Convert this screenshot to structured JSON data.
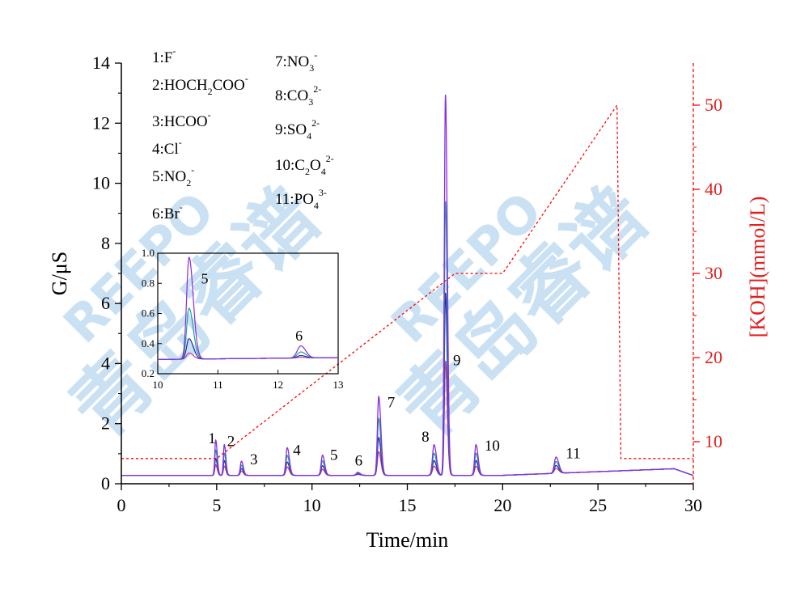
{
  "chart_data": {
    "type": "line",
    "xlabel": "Time/min",
    "ylabel": "G/μS",
    "y2label": "[KOH](mmol/L)",
    "xlim": [
      0,
      30
    ],
    "ylim": [
      0,
      14
    ],
    "y2lim": [
      5,
      55
    ],
    "xticks": [
      "0",
      "5",
      "10",
      "15",
      "20",
      "25",
      "30"
    ],
    "yticks": [
      "0",
      "2",
      "4",
      "6",
      "8",
      "10",
      "12",
      "14"
    ],
    "y2ticks": [
      "10",
      "20",
      "30",
      "40",
      "50"
    ],
    "legend": [
      {
        "num": "1:",
        "base": "F",
        "sub": "",
        "sup": "-"
      },
      {
        "num": "2:",
        "base": "HOCH",
        "sub": "2",
        "base2": "COO",
        "sup": "-"
      },
      {
        "num": "3:",
        "base": "HCOO",
        "sub": "",
        "sup": "-"
      },
      {
        "num": "4:",
        "base": "Cl",
        "sub": "",
        "sup": "-"
      },
      {
        "num": "5:",
        "base": "NO",
        "sub": "2",
        "sup": "-"
      },
      {
        "num": "6:",
        "base": "Br",
        "sub": "",
        "sup": "-"
      },
      {
        "num": "7:",
        "base": "NO",
        "sub": "3",
        "sup": "-"
      },
      {
        "num": "8:",
        "base": "CO",
        "sub": "3",
        "sup": "2-"
      },
      {
        "num": "9:",
        "base": "SO",
        "sub": "4",
        "sup": "2-"
      },
      {
        "num": "10:",
        "base": "C",
        "sub": "2",
        "base2": "O",
        "sub2": "4",
        "sup": "2-"
      },
      {
        "num": "11:",
        "base": "PO",
        "sub": "4",
        "sup": "3-"
      }
    ],
    "baseline": 0.28,
    "scale_factors": [
      1.0,
      0.72,
      0.48,
      0.3
    ],
    "series_colors": [
      "#8a2be2",
      "#1aa39a",
      "#2030a0",
      "#d0309a"
    ],
    "peaks": [
      {
        "label": "1",
        "t": 4.95,
        "h": 1.45,
        "w": 0.05
      },
      {
        "label": "2",
        "t": 5.4,
        "h": 1.3,
        "w": 0.05
      },
      {
        "label": "3",
        "t": 6.3,
        "h": 0.75,
        "w": 0.06
      },
      {
        "label": "4",
        "t": 8.7,
        "h": 1.2,
        "w": 0.07
      },
      {
        "label": "5",
        "t": 10.55,
        "h": 0.95,
        "w": 0.07
      },
      {
        "label": "6",
        "t": 12.4,
        "h": 0.38,
        "w": 0.08
      },
      {
        "label": "7",
        "t": 13.5,
        "h": 2.9,
        "w": 0.07
      },
      {
        "label": "8",
        "t": 16.4,
        "h": 1.3,
        "w": 0.08
      },
      {
        "label": "9",
        "t": 17.0,
        "h": 12.95,
        "w": 0.06
      },
      {
        "label": "10",
        "t": 18.6,
        "h": 1.3,
        "w": 0.07
      },
      {
        "label": "11",
        "t": 22.8,
        "h": 0.82,
        "w": 0.09
      }
    ],
    "peak_label_pos": [
      {
        "label": "1",
        "t": 4.75,
        "y": 1.35
      },
      {
        "label": "2",
        "t": 5.75,
        "y": 1.25
      },
      {
        "label": "3",
        "t": 6.95,
        "y": 0.65
      },
      {
        "label": "4",
        "t": 9.2,
        "y": 0.95
      },
      {
        "label": "5",
        "t": 11.15,
        "y": 0.8
      },
      {
        "label": "6",
        "t": 12.45,
        "y": 0.6
      },
      {
        "label": "7",
        "t": 14.15,
        "y": 2.55
      },
      {
        "label": "8",
        "t": 15.95,
        "y": 1.4
      },
      {
        "label": "9",
        "t": 17.6,
        "y": 3.95
      },
      {
        "label": "10",
        "t": 19.45,
        "y": 1.1
      },
      {
        "label": "11",
        "t": 23.7,
        "y": 0.85
      }
    ],
    "koh_gradient": [
      {
        "t": 0,
        "c": 8
      },
      {
        "t": 5.0,
        "c": 8
      },
      {
        "t": 17.5,
        "c": 30
      },
      {
        "t": 20.0,
        "c": 30
      },
      {
        "t": 26.0,
        "c": 50
      },
      {
        "t": 26.2,
        "c": 8
      },
      {
        "t": 30.0,
        "c": 8
      }
    ],
    "inset": {
      "xlim": [
        10,
        13
      ],
      "ylim": [
        0.2,
        1.0
      ],
      "xticks": [
        "10",
        "11",
        "12",
        "13"
      ],
      "yticks": [
        "0.2",
        "0.4",
        "0.6",
        "0.8",
        "1.0"
      ],
      "baseline": 0.295,
      "peaks": [
        {
          "label": "5",
          "t": 10.52,
          "h": 0.97
        },
        {
          "label": "6",
          "t": 12.38,
          "h": 0.375
        }
      ],
      "peak_labels": [
        {
          "label": "5",
          "t": 10.78,
          "y": 0.8
        },
        {
          "label": "6",
          "t": 12.35,
          "y": 0.42
        }
      ]
    }
  },
  "watermark": {
    "latin": "REEPO",
    "chinese": "青岛睿谱"
  }
}
